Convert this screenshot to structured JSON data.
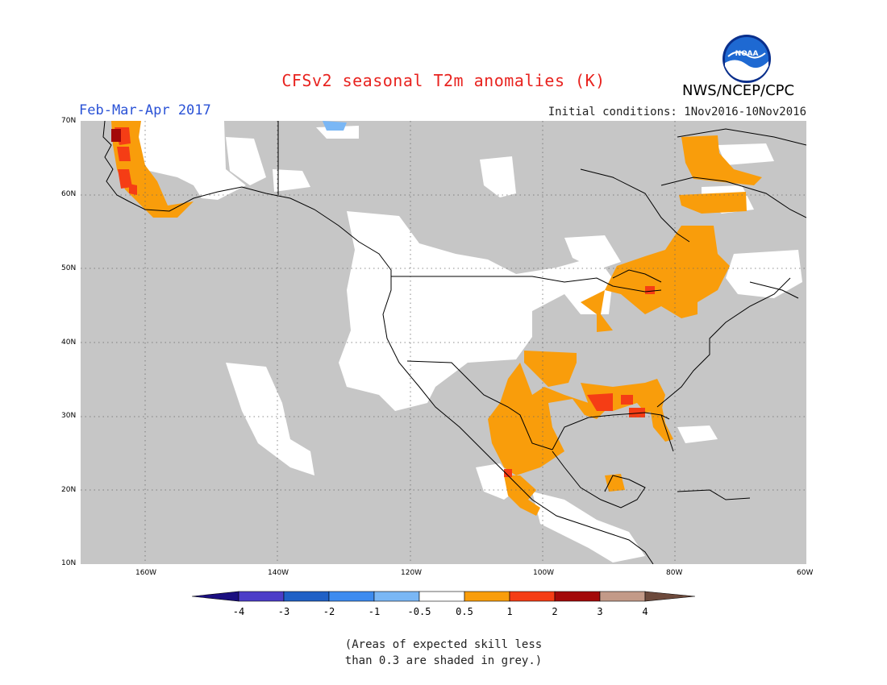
{
  "title": "CFSv2 seasonal T2m anomalies (K)",
  "period": "Feb-Mar-Apr 2017",
  "initial_conditions": "Initial conditions: 1Nov2016-10Nov2016",
  "agency": "NWS/NCEP/CPC",
  "logo_text": "NOAA",
  "lat_labels": [
    "70N",
    "60N",
    "50N",
    "40N",
    "30N",
    "20N",
    "10N"
  ],
  "lon_labels": [
    "160W",
    "140W",
    "120W",
    "100W",
    "80W",
    "60W"
  ],
  "colorbar": {
    "tick_labels": [
      "-4",
      "-3",
      "-2",
      "-1",
      "-0.5",
      "0.5",
      "1",
      "2",
      "3",
      "4"
    ],
    "colors": [
      "#1b0f80",
      "#4c3dc8",
      "#1f60c6",
      "#3d8bef",
      "#7ab7f5",
      "#ffffff",
      "#f99d0b",
      "#f53d15",
      "#a30909",
      "#c39a88",
      "#6d4a3c"
    ]
  },
  "note_line1": "(Areas of expected skill less",
  "note_line2": "than 0.3 are shaded in grey.)",
  "colors": {
    "grey_no_skill": "#c6c6c6",
    "positive_0_5_to_1": "#f99d0b",
    "positive_1_to_2": "#f53d15",
    "positive_2_to_3": "#a30909",
    "negative_0_5_to_1": "#7ab7f5",
    "near_zero": "#ffffff"
  }
}
